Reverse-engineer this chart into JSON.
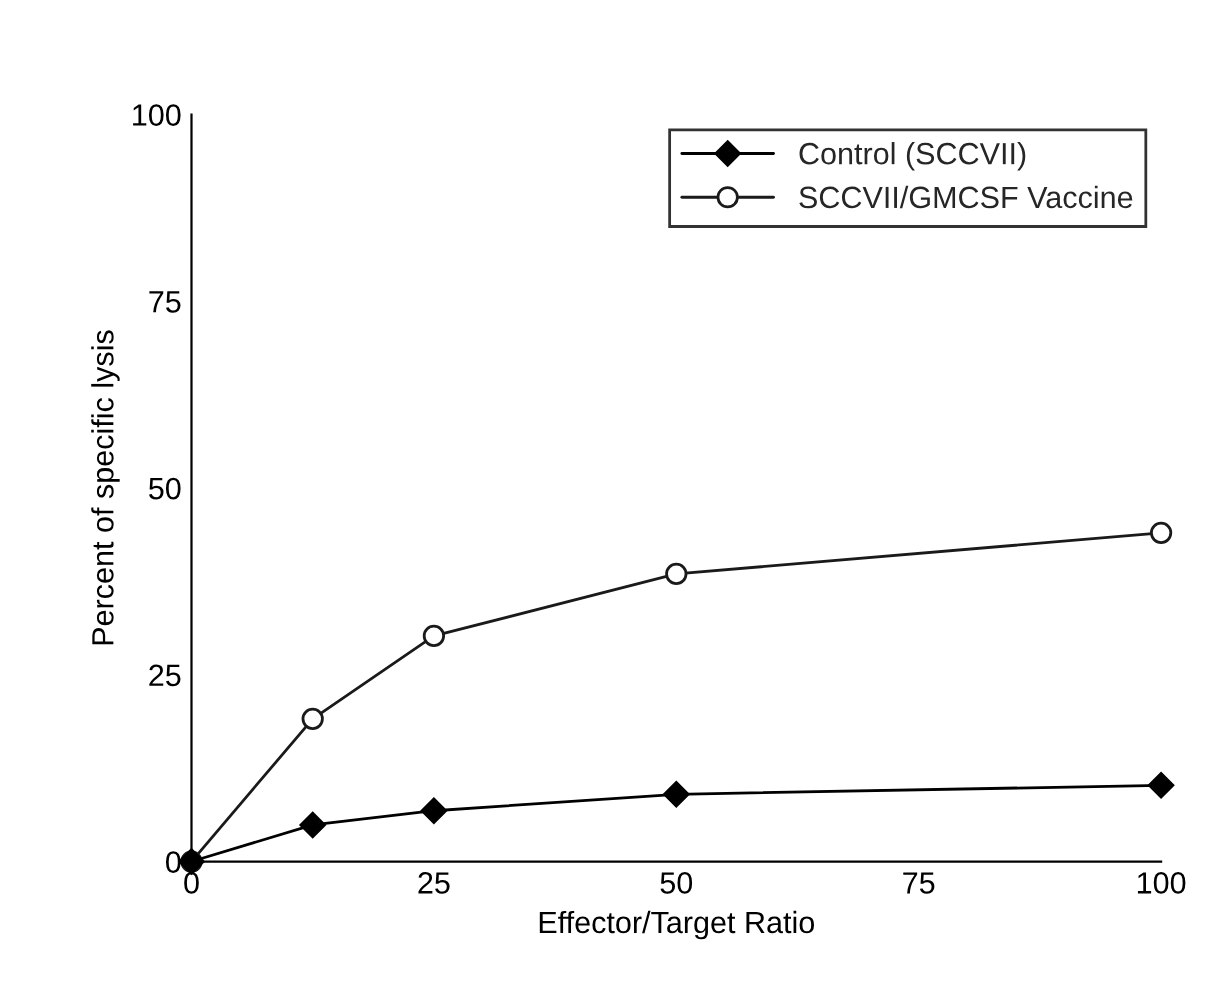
{
  "chart_data": {
    "type": "line",
    "xlabel": "Effector/Target Ratio",
    "ylabel": "Percent of specific lysis",
    "x": [
      0,
      12.5,
      25,
      50,
      100
    ],
    "series": [
      {
        "name": "Control (SCCVII)",
        "color": "#000000",
        "marker": "diamond",
        "values": [
          0,
          4.9,
          6.8,
          9.0,
          10.2
        ]
      },
      {
        "name": "SCCVII/GMCSF Vaccine",
        "color": "#1a1a1a",
        "marker": "circle",
        "values": [
          0,
          19.1,
          30.2,
          38.5,
          44.0
        ]
      }
    ],
    "xlim": [
      0,
      100
    ],
    "ylim": [
      0,
      100
    ],
    "xticks": [
      0,
      25,
      50,
      75,
      100
    ],
    "yticks": [
      0,
      25,
      50,
      75,
      100
    ],
    "grid": false,
    "legend": "top right",
    "line_style": "solid"
  }
}
